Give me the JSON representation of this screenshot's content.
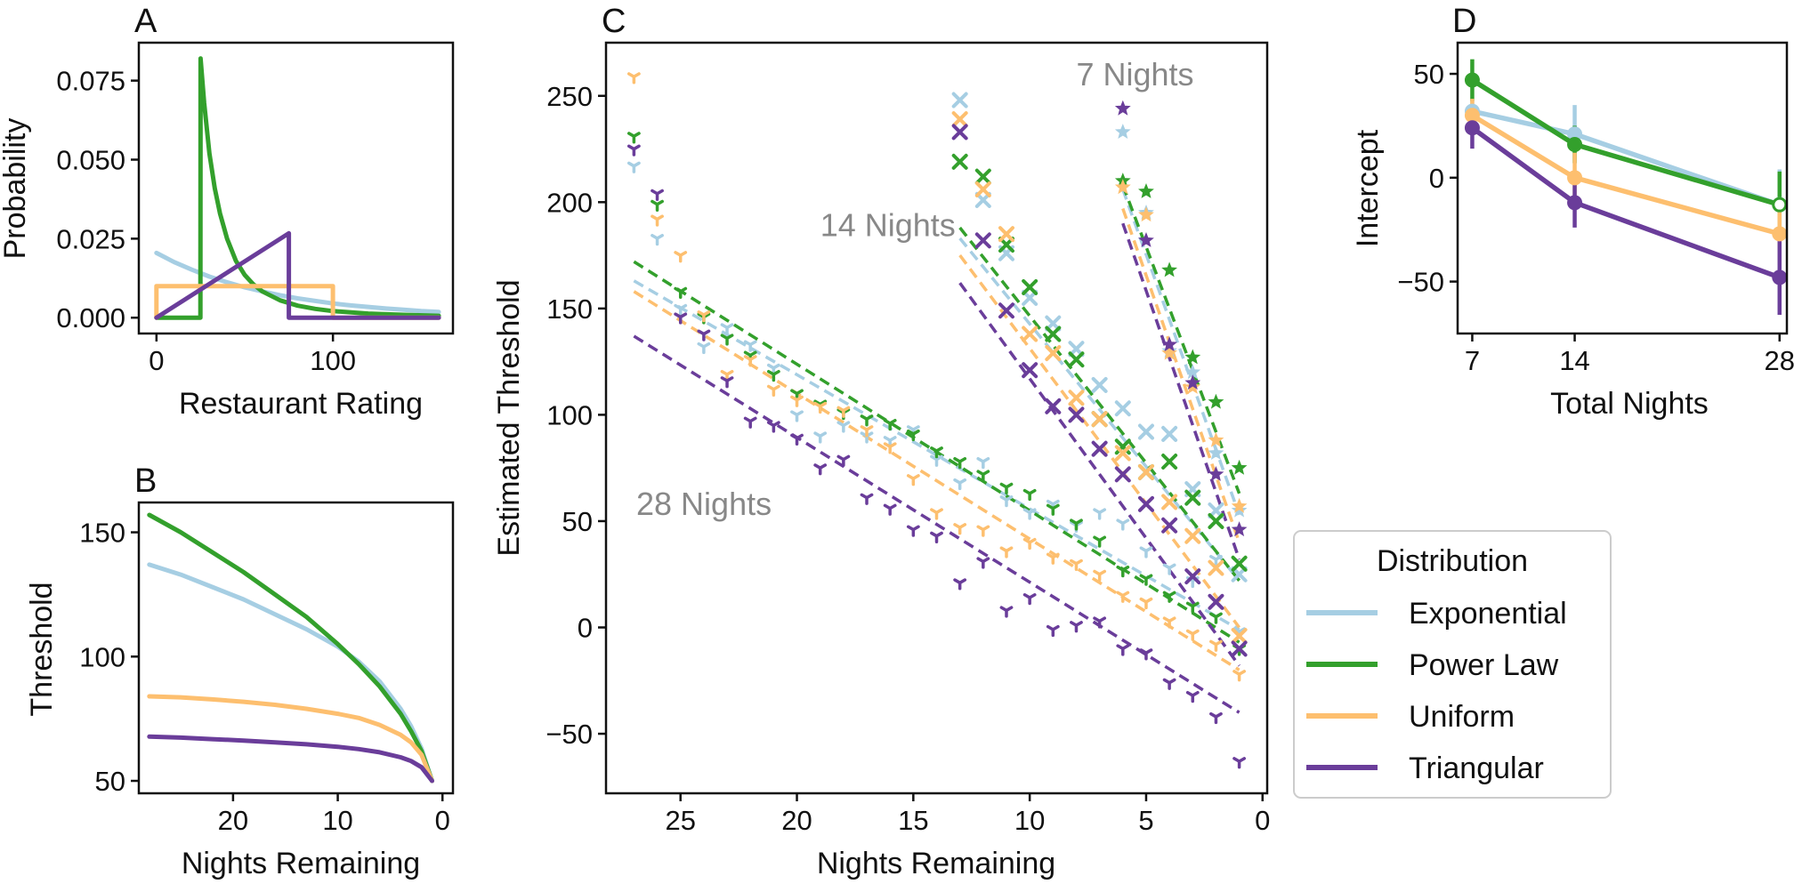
{
  "colors": {
    "Exponential": "#a6cee3",
    "Power Law": "#33a02c",
    "Uniform": "#fdbf6f",
    "Triangular": "#6a3d9a",
    "annotation": "#888888"
  },
  "legend": {
    "title": "Distribution",
    "items": [
      "Exponential",
      "Power Law",
      "Uniform",
      "Triangular"
    ]
  },
  "chart_data": [
    {
      "panel": "A",
      "type": "line",
      "xlabel": "Restaurant Rating",
      "ylabel": "Probability",
      "xlim": [
        -10,
        168
      ],
      "ylim": [
        -0.005,
        0.087
      ],
      "xticks": [
        0,
        100
      ],
      "yticks": [
        0.0,
        0.025,
        0.05,
        0.075
      ],
      "ytick_labels": [
        "0.000",
        "0.025",
        "0.050",
        "0.075"
      ],
      "series": [
        {
          "name": "Exponential",
          "x": [
            0,
            10,
            20,
            30,
            40,
            50,
            60,
            70,
            80,
            90,
            100,
            110,
            120,
            130,
            140,
            150,
            160
          ],
          "y": [
            0.0205,
            0.0176,
            0.0152,
            0.013,
            0.0112,
            0.0096,
            0.0083,
            0.0071,
            0.0061,
            0.0053,
            0.0045,
            0.0039,
            0.0034,
            0.0029,
            0.0025,
            0.0021,
            0.0018
          ]
        },
        {
          "name": "Power Law",
          "x": [
            0,
            24.9,
            25,
            27,
            30,
            33,
            36,
            40,
            45,
            50,
            55,
            60,
            70,
            80,
            90,
            100,
            120,
            140,
            160
          ],
          "y": [
            0,
            0,
            0.082,
            0.068,
            0.052,
            0.041,
            0.033,
            0.025,
            0.018,
            0.0135,
            0.0105,
            0.0083,
            0.0055,
            0.0038,
            0.0028,
            0.0021,
            0.0013,
            0.0009,
            0.0006
          ]
        },
        {
          "name": "Uniform",
          "x": [
            0,
            0,
            100,
            100,
            160
          ],
          "y": [
            0,
            0.01,
            0.01,
            0,
            0
          ]
        },
        {
          "name": "Triangular",
          "x": [
            0,
            75,
            75,
            160
          ],
          "y": [
            0,
            0.0267,
            0,
            0
          ]
        }
      ]
    },
    {
      "panel": "B",
      "type": "line",
      "xlabel": "Nights Remaining",
      "ylabel": "Threshold",
      "xlim": [
        29,
        -1
      ],
      "ylim": [
        45,
        162
      ],
      "xticks": [
        20,
        10,
        0
      ],
      "yticks": [
        50,
        100,
        150
      ],
      "series": [
        {
          "name": "Exponential",
          "x": [
            28,
            25,
            22,
            19,
            16,
            13,
            10,
            8,
            6,
            4,
            3,
            2,
            1
          ],
          "y": [
            137,
            133,
            128,
            123,
            117,
            111,
            104,
            98,
            90,
            79,
            72,
            63,
            50
          ]
        },
        {
          "name": "Power Law",
          "x": [
            28,
            25,
            22,
            19,
            16,
            13,
            10,
            8,
            6,
            4,
            3,
            2,
            1
          ],
          "y": [
            157,
            150,
            142,
            134,
            125,
            116,
            105,
            97,
            88,
            77,
            70,
            62,
            50
          ]
        },
        {
          "name": "Uniform",
          "x": [
            28,
            25,
            22,
            19,
            16,
            13,
            10,
            8,
            6,
            4,
            3,
            2,
            1
          ],
          "y": [
            84,
            83.6,
            82.8,
            81.8,
            80.6,
            79,
            77,
            75.3,
            72.5,
            68.5,
            65.5,
            60.5,
            50
          ]
        },
        {
          "name": "Triangular",
          "x": [
            28,
            25,
            22,
            19,
            16,
            13,
            10,
            8,
            6,
            4,
            3,
            2,
            1
          ],
          "y": [
            67.8,
            67.4,
            66.8,
            66.2,
            65.5,
            64.7,
            63.7,
            62.8,
            61.5,
            59.5,
            58,
            55.5,
            50
          ]
        }
      ]
    },
    {
      "panel": "C",
      "type": "scatter",
      "xlabel": "Nights Remaining",
      "ylabel": "Estimated Threshold",
      "xlim": [
        28.2,
        -0.2
      ],
      "ylim": [
        -78,
        275
      ],
      "xticks": [
        25,
        20,
        15,
        10,
        5,
        0
      ],
      "yticks": [
        -50,
        0,
        50,
        100,
        150,
        200,
        250
      ],
      "annotations": [
        {
          "text": "7 Nights",
          "x": 8,
          "y": 260
        },
        {
          "text": "14 Nights",
          "x": 19,
          "y": 189
        },
        {
          "text": "28 Nights",
          "x": 26.9,
          "y": 58
        }
      ],
      "groups": [
        {
          "label": "28 Nights",
          "marker": "tri",
          "series": [
            {
              "name": "Exponential",
              "x": [
                27,
                26,
                25,
                24,
                23,
                22,
                21,
                20,
                19,
                18,
                17,
                16,
                15,
                14,
                13,
                12,
                11,
                10,
                9,
                8,
                7,
                6,
                5,
                4,
                3,
                2,
                1
              ],
              "y": [
                217,
                183,
                150,
                132,
                141,
                133,
                122,
                100,
                90,
                95,
                90,
                88,
                93,
                79,
                68,
                78,
                60,
                54,
                58,
                48,
                54,
                49,
                36,
                28,
                22,
                32,
                -2
              ],
              "fit": [
                [
                  27,
                  163
                ],
                [
                  1,
                  -1
                ]
              ]
            },
            {
              "name": "Power Law",
              "x": [
                27,
                26,
                25,
                24,
                23,
                22,
                21,
                20,
                19,
                18,
                17,
                16,
                15,
                14,
                13,
                12,
                11,
                10,
                9,
                8,
                7,
                6,
                5,
                4,
                3,
                2,
                1
              ],
              "y": [
                231,
                199,
                158,
                146,
                136,
                128,
                119,
                110,
                105,
                101,
                98,
                96,
                91,
                83,
                78,
                72,
                66,
                63,
                56,
                49,
                41,
                27,
                23,
                15,
                10,
                5,
                -10
              ],
              "fit": [
                [
                  27,
                  172
                ],
                [
                  1,
                  -7
                ]
              ]
            },
            {
              "name": "Uniform",
              "x": [
                27,
                26,
                25,
                24,
                23,
                22,
                21,
                20,
                19,
                18,
                17,
                16,
                15,
                14,
                13,
                12,
                11,
                10,
                9,
                8,
                7,
                6,
                5,
                4,
                3,
                2,
                1
              ],
              "y": [
                259,
                192,
                175,
                147,
                119,
                126,
                112,
                107,
                104,
                102,
                93,
                85,
                70,
                54,
                47,
                46,
                36,
                40,
                33,
                30,
                25,
                15,
                12,
                3,
                -3,
                -8,
                -22
              ],
              "fit": [
                [
                  27,
                  158
                ],
                [
                  1,
                  -20
                ]
              ]
            },
            {
              "name": "Triangular",
              "x": [
                27,
                26,
                25,
                24,
                23,
                22,
                21,
                20,
                19,
                18,
                17,
                16,
                15,
                14,
                13,
                12,
                11,
                10,
                9,
                8,
                7,
                6,
                5,
                4,
                3,
                2,
                1
              ],
              "y": [
                225,
                204,
                146,
                138,
                116,
                97,
                95,
                89,
                75,
                79,
                61,
                56,
                46,
                43,
                21,
                31,
                8,
                14,
                -1,
                1,
                3,
                -10,
                -12,
                -26,
                -32,
                -42,
                -63
              ],
              "fit": [
                [
                  27,
                  137
                ],
                [
                  1,
                  -40
                ]
              ]
            }
          ]
        },
        {
          "label": "14 Nights",
          "marker": "x",
          "series": [
            {
              "name": "Exponential",
              "x": [
                13,
                12,
                11,
                10,
                9,
                8,
                7,
                6,
                5,
                4,
                3,
                2,
                1
              ],
              "y": [
                248,
                201,
                176,
                155,
                143,
                131,
                114,
                103,
                92,
                91,
                65,
                55,
                25
              ],
              "fit": [
                [
                  13,
                  183
                ],
                [
                  1,
                  22
                ]
              ]
            },
            {
              "name": "Power Law",
              "x": [
                13,
                12,
                11,
                10,
                9,
                8,
                7,
                6,
                5,
                4,
                3,
                2,
                1
              ],
              "y": [
                219,
                212,
                180,
                160,
                138,
                126,
                98,
                85,
                73,
                78,
                61,
                50,
                30
              ],
              "fit": [
                [
                  13,
                  188
                ],
                [
                  1,
                  22
                ]
              ]
            },
            {
              "name": "Uniform",
              "x": [
                13,
                12,
                11,
                10,
                9,
                8,
                7,
                6,
                5,
                4,
                3,
                2,
                1
              ],
              "y": [
                239,
                206,
                185,
                138,
                129,
                108,
                98,
                82,
                73,
                59,
                43,
                28,
                -4
              ],
              "fit": [
                [
                  13,
                  175
                ],
                [
                  1,
                  0
                ]
              ]
            },
            {
              "name": "Triangular",
              "x": [
                13,
                12,
                11,
                10,
                9,
                8,
                7,
                6,
                5,
                4,
                3,
                2,
                1
              ],
              "y": [
                233,
                182,
                149,
                121,
                104,
                100,
                84,
                72,
                58,
                48,
                24,
                12,
                -10
              ],
              "fit": [
                [
                  13,
                  162
                ],
                [
                  1,
                  -18
                ]
              ]
            }
          ]
        },
        {
          "label": "7 Nights",
          "marker": "star",
          "series": [
            {
              "name": "Exponential",
              "x": [
                6,
                5,
                4,
                3,
                2,
                1
              ],
              "y": [
                233,
                195,
                130,
                120,
                82,
                55
              ],
              "fit": [
                [
                  6,
                  206
                ],
                [
                  1,
                  53
                ]
              ]
            },
            {
              "name": "Power Law",
              "x": [
                6,
                5,
                4,
                3,
                2,
                1
              ],
              "y": [
                210,
                205,
                168,
                127,
                106,
                75
              ],
              "fit": [
                [
                  6,
                  208
                ],
                [
                  1,
                  63
                ]
              ]
            },
            {
              "name": "Uniform",
              "x": [
                6,
                5,
                4,
                3,
                2,
                1
              ],
              "y": [
                207,
                194,
                129,
                113,
                88,
                57
              ],
              "fit": [
                [
                  6,
                  197
                ],
                [
                  1,
                  40
                ]
              ]
            },
            {
              "name": "Triangular",
              "x": [
                6,
                5,
                4,
                3,
                2,
                1
              ],
              "y": [
                244,
                182,
                133,
                115,
                72,
                46
              ],
              "fit": [
                [
                  6,
                  190
                ],
                [
                  1,
                  32
                ]
              ]
            }
          ]
        }
      ]
    },
    {
      "panel": "D",
      "type": "line",
      "xlabel": "Total Nights",
      "ylabel": "Intercept",
      "xlim": [
        6,
        28.5
      ],
      "ylim": [
        -75,
        65
      ],
      "xticks": [
        7,
        14,
        28
      ],
      "yticks": [
        -50,
        0,
        50
      ],
      "series": [
        {
          "name": "Exponential",
          "x": [
            7,
            14,
            28
          ],
          "y": [
            32,
            21,
            -13
          ],
          "err": [
            6,
            14,
            17
          ],
          "open_last": true
        },
        {
          "name": "Power Law",
          "x": [
            7,
            14,
            28
          ],
          "y": [
            47,
            16,
            -13
          ],
          "err": [
            10,
            9,
            16
          ],
          "open_last": true
        },
        {
          "name": "Uniform",
          "x": [
            7,
            14,
            28
          ],
          "y": [
            30,
            0,
            -27
          ],
          "err": [
            8,
            12,
            15
          ]
        },
        {
          "name": "Triangular",
          "x": [
            7,
            14,
            28
          ],
          "y": [
            24,
            -12,
            -48
          ],
          "err": [
            10,
            12,
            18
          ]
        }
      ]
    }
  ]
}
